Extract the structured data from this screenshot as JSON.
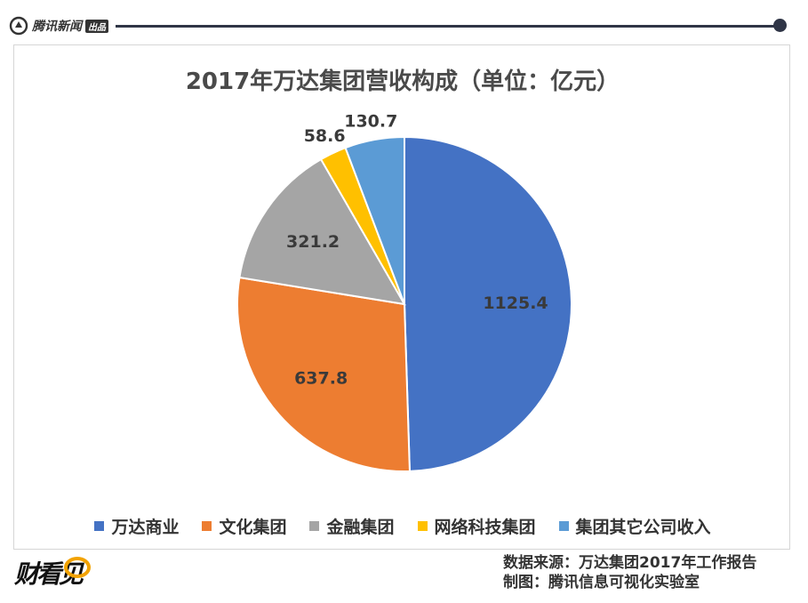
{
  "header": {
    "brand_name": "腾讯新闻",
    "brand_tag": "出品"
  },
  "footer": {
    "logo_text": "财看见",
    "source_line": "数据来源：万达集团2017年工作报告",
    "credit_line": "制图：腾讯信息可视化实验室"
  },
  "colors": {
    "series": [
      "#4472c4",
      "#ed7d31",
      "#a5a5a5",
      "#ffc000",
      "#5b9bd5"
    ],
    "frame_rule": "#2f3546"
  },
  "chart_data": {
    "type": "pie",
    "title": "2017年万达集团营收构成（单位：亿元）",
    "categories": [
      "万达商业",
      "文化集团",
      "金融集团",
      "网络科技集团",
      "集团其它公司收入"
    ],
    "values": [
      1125.4,
      637.8,
      321.2,
      58.6,
      130.7
    ],
    "value_labels": [
      "1125.4",
      "637.8",
      "321.2",
      "58.6",
      "130.7"
    ],
    "start_angle_deg": 0,
    "direction": "clockwise",
    "legend_position": "bottom"
  }
}
